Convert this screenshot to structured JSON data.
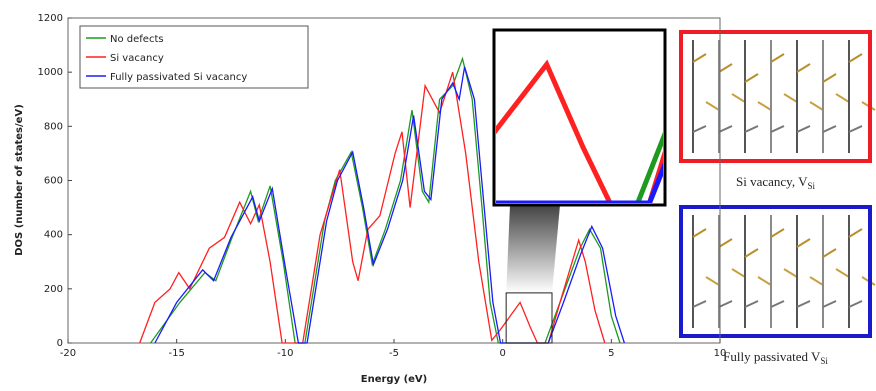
{
  "chart_data": {
    "type": "line",
    "xlabel": "Energy (eV)",
    "ylabel": "DOS (number of states/eV)",
    "xlim": [
      -20,
      10
    ],
    "ylim": [
      0,
      1200
    ],
    "xticks": [
      -20,
      -15,
      -10,
      -5,
      0,
      5,
      10
    ],
    "yticks": [
      0,
      200,
      400,
      600,
      800,
      1000,
      1200
    ],
    "legend": "upper left",
    "series": [
      {
        "name": "No defects",
        "color": "#1e9a1e",
        "x": [
          -16.2,
          -14.85,
          -13.7,
          -13.2,
          -12.45,
          -11.6,
          -11.25,
          -10.7,
          -10.1,
          -9.55,
          -9.1,
          -8.2,
          -7.7,
          -6.97,
          -6.45,
          -6.0,
          -5.4,
          -4.7,
          -4.17,
          -3.7,
          -3.4,
          -2.9,
          -2.3,
          -1.85,
          -1.4,
          -0.95,
          -0.58,
          -0.2,
          1.95,
          2.64,
          3.56,
          4.0,
          4.5,
          5.0,
          5.4
        ],
        "values": [
          0,
          150,
          260,
          230,
          390,
          560,
          450,
          580,
          300,
          0,
          0,
          450,
          600,
          705,
          500,
          290,
          420,
          600,
          860,
          560,
          520,
          900,
          950,
          1050,
          900,
          500,
          150,
          0,
          0,
          150,
          350,
          420,
          350,
          100,
          0
        ]
      },
      {
        "name": "Si vacancy",
        "color": "#ff2020",
        "x": [
          -16.7,
          -16.0,
          -15.3,
          -14.9,
          -14.4,
          -13.5,
          -12.8,
          -12.1,
          -11.6,
          -11.2,
          -10.7,
          -10.15,
          -9.2,
          -8.4,
          -7.5,
          -6.9,
          -6.65,
          -6.2,
          -5.65,
          -4.95,
          -4.63,
          -4.26,
          -3.57,
          -2.9,
          -2.3,
          -1.7,
          -1.1,
          -0.5,
          -0.1,
          0.35,
          0.8,
          1.26,
          1.6,
          2.1,
          2.64,
          3.5,
          3.8,
          4.25,
          4.7
        ],
        "values": [
          0,
          150,
          200,
          260,
          200,
          350,
          390,
          520,
          440,
          510,
          300,
          0,
          0,
          400,
          640,
          300,
          230,
          420,
          470,
          700,
          780,
          500,
          950,
          850,
          1000,
          700,
          300,
          10,
          50,
          100,
          150,
          60,
          0,
          0,
          150,
          380,
          300,
          120,
          0
        ]
      },
      {
        "name": "Fully passivated Si vacancy",
        "color": "#1a1aff",
        "x": [
          -16.0,
          -15.0,
          -13.8,
          -13.3,
          -12.5,
          -11.5,
          -11.2,
          -10.6,
          -10.0,
          -9.4,
          -9.0,
          -8.1,
          -7.6,
          -6.9,
          -6.4,
          -5.95,
          -5.3,
          -4.6,
          -4.1,
          -3.6,
          -3.3,
          -2.8,
          -2.3,
          -2.0,
          -1.75,
          -1.3,
          -0.85,
          -0.45,
          -0.1,
          2.1,
          2.8,
          3.6,
          4.1,
          4.6,
          5.2,
          5.6
        ],
        "values": [
          0,
          150,
          270,
          230,
          390,
          540,
          450,
          570,
          280,
          0,
          0,
          450,
          600,
          705,
          500,
          290,
          420,
          600,
          840,
          560,
          530,
          900,
          960,
          900,
          1020,
          900,
          500,
          150,
          0,
          0,
          150,
          330,
          430,
          350,
          100,
          0
        ]
      }
    ],
    "inset": {
      "xlim": [
        0.16,
        2.27
      ],
      "ylim": [
        0,
        185
      ]
    }
  },
  "panels": [
    {
      "caption": "Si vacancy, V",
      "subscript": "Si",
      "color": "#ee1c24"
    },
    {
      "caption": "Fully passivated V",
      "subscript": "Si",
      "color": "#1a1acc"
    }
  ]
}
